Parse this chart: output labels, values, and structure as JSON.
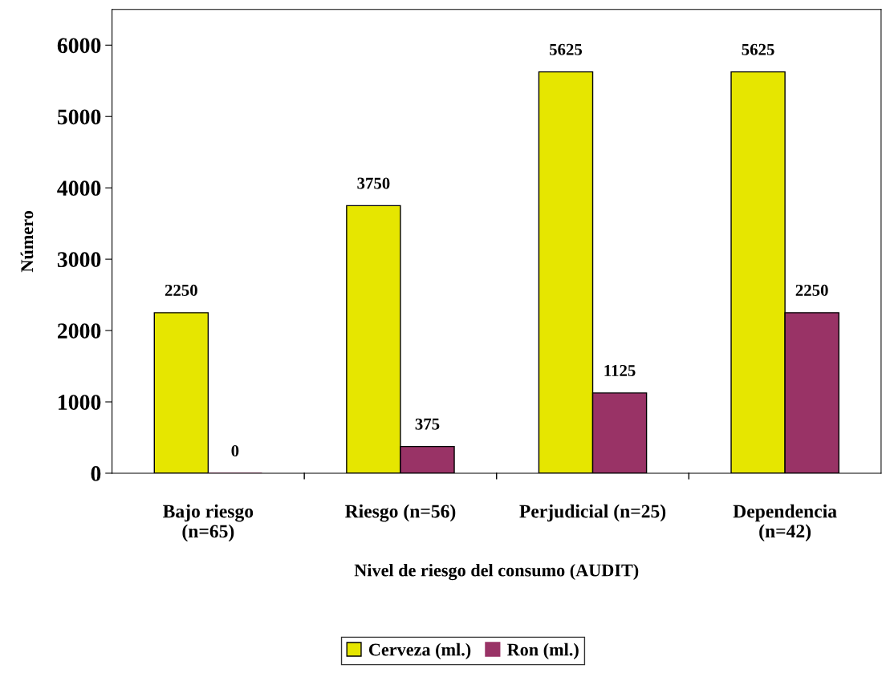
{
  "chart_data": {
    "type": "bar",
    "xlabel": "Nivel de riesgo del consumo (AUDIT)",
    "ylabel": "Número",
    "categories": [
      "Bajo riesgo\n(n=65)",
      "Riesgo (n=56)",
      "Perjudicial (n=25)",
      "Dependencia\n(n=42)"
    ],
    "series": [
      {
        "name": "Cerveza (ml.)",
        "color": "#e6e600",
        "values": [
          2250,
          3750,
          5625,
          5625
        ]
      },
      {
        "name": "Ron (ml.)",
        "color": "#993366",
        "values": [
          0,
          375,
          1125,
          2250
        ]
      }
    ],
    "ylim": [
      0,
      6500
    ],
    "yticks": [
      0,
      1000,
      2000,
      3000,
      4000,
      5000,
      6000
    ],
    "data_labels": true,
    "legend": "bottom",
    "grid": false
  }
}
